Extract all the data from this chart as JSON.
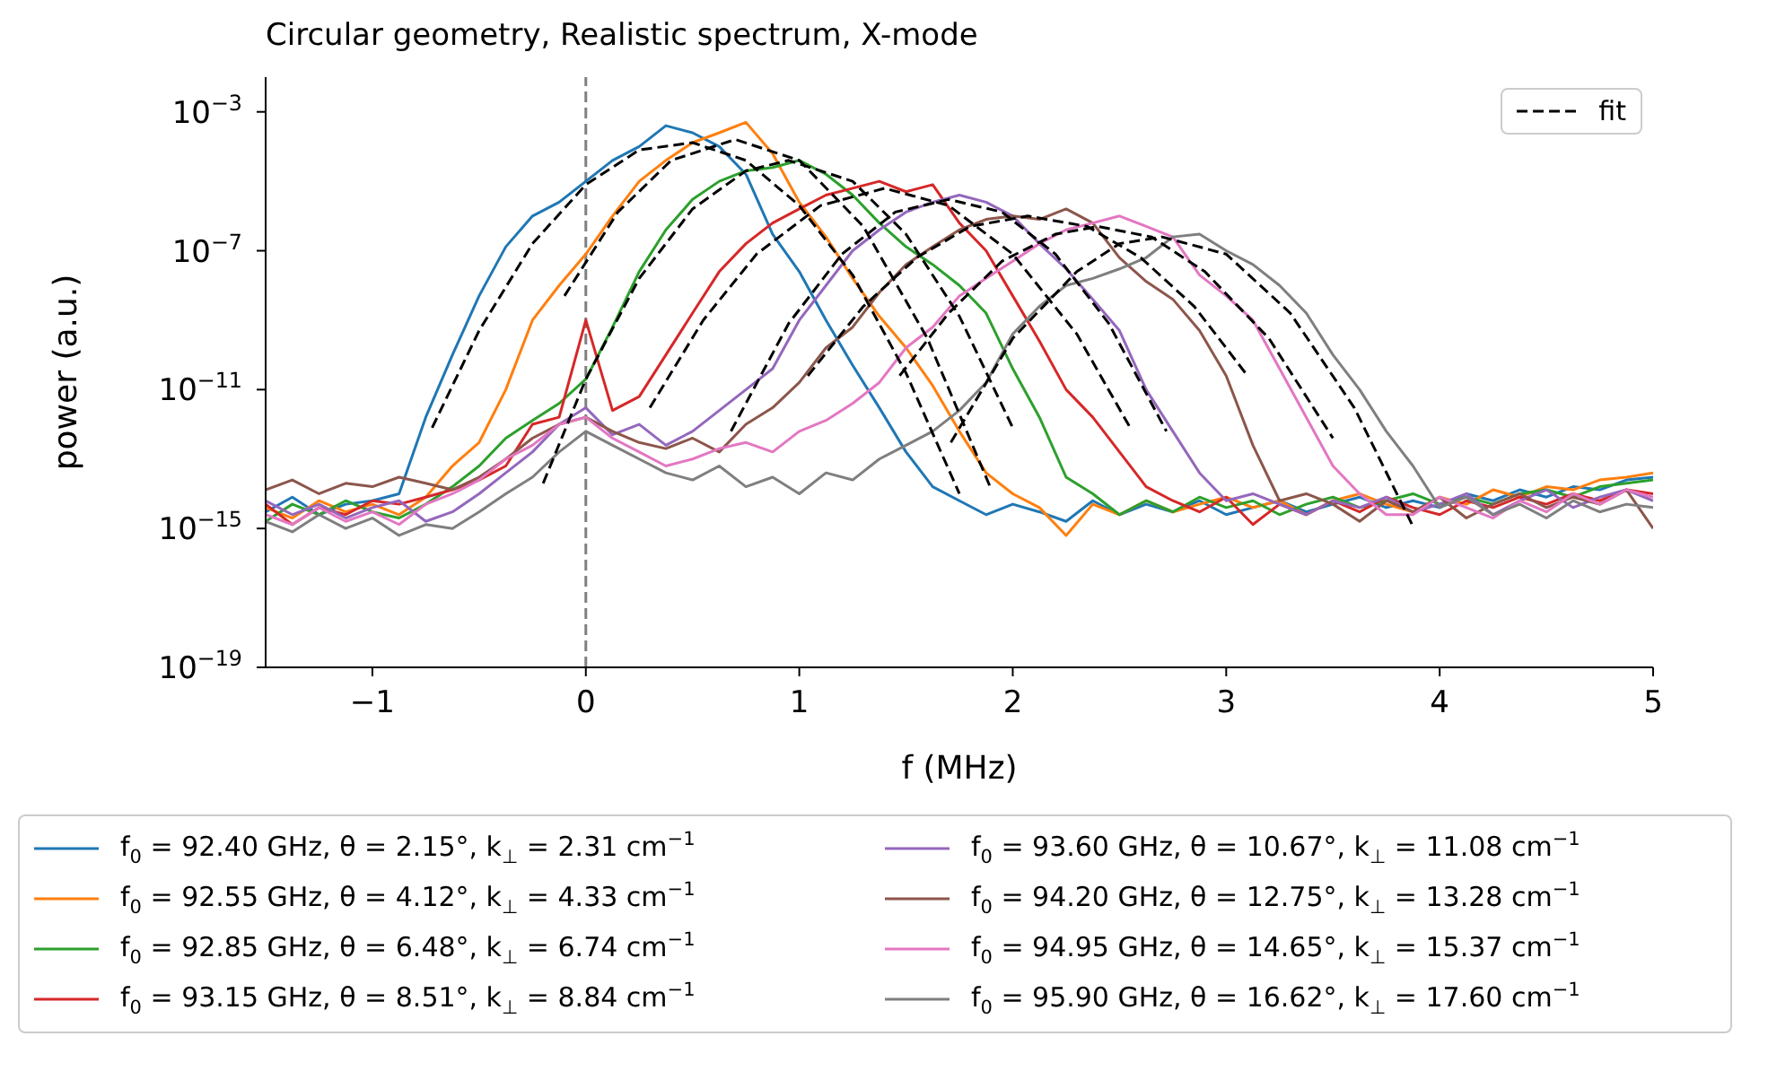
{
  "chart_data": {
    "type": "line",
    "title": "Circular geometry, Realistic spectrum, X-mode",
    "xlabel": "f (MHz)",
    "ylabel": "power (a.u.)",
    "log": "y",
    "legend": "bottom",
    "line_style": "solid",
    "xlim": [
      -1.5,
      5
    ],
    "xticks": [
      {
        "value": -1,
        "label": "−1"
      },
      0,
      1,
      2,
      3,
      4,
      5
    ],
    "ylim": [
      1e-19,
      0.01
    ],
    "yticks": [
      {
        "value": 1e-19,
        "label": "10$^{−19}$"
      },
      {
        "value": 1e-15,
        "label": "10$^{−15}$"
      },
      {
        "value": 1e-11,
        "label": "10$^{−11}$"
      },
      {
        "value": 1e-07,
        "label": "10$^{−7}$"
      },
      {
        "value": 0.001,
        "label": "10$^{−3}$"
      }
    ],
    "ref_lines": [
      {
        "axis": "x",
        "value": 0,
        "color": "#808080",
        "line_style": "dashed"
      }
    ],
    "x": [
      -1.5,
      -1.375,
      -1.25,
      -1.125,
      -1,
      -0.875,
      -0.75,
      -0.625,
      -0.5,
      -0.375,
      -0.25,
      -0.125,
      0,
      0.125,
      0.25,
      0.375,
      0.5,
      0.625,
      0.75,
      0.875,
      1,
      1.125,
      1.25,
      1.375,
      1.5,
      1.625,
      1.75,
      1.875,
      2,
      2.125,
      2.25,
      2.375,
      2.5,
      2.625,
      2.75,
      2.875,
      3,
      3.125,
      3.25,
      3.375,
      3.5,
      3.625,
      3.75,
      3.875,
      4,
      4.125,
      4.25,
      4.375,
      4.5,
      4.625,
      4.75,
      4.875,
      5
    ],
    "series": [
      {
        "name": "f$_{0}$ = 92.40 GHz, θ = 2.15°, k$_{⊥}$ = 2.31 cm$^{−1}$",
        "color": "#1f77b4",
        "values": [
          3e-15,
          8e-15,
          2.5e-15,
          5e-15,
          6.3e-15,
          1e-14,
          1.6e-12,
          1e-10,
          5e-09,
          1.3e-07,
          1e-06,
          2.5e-06,
          1e-05,
          4e-05,
          0.0001,
          0.0004,
          0.00025,
          0.0001,
          1.6e-05,
          3e-07,
          2.5e-08,
          1e-09,
          5e-11,
          3e-12,
          1.6e-13,
          1.6e-14,
          6.3e-15,
          2.5e-15,
          5e-15,
          3e-15,
          1.6e-15,
          6.3e-15,
          2.5e-15,
          5e-15,
          3e-15,
          6.3e-15,
          2.5e-15,
          4e-15,
          6.3e-15,
          3e-15,
          5e-15,
          8e-15,
          4e-15,
          6.3e-15,
          4e-15,
          1e-14,
          6.3e-15,
          1.3e-14,
          8e-15,
          1.6e-14,
          1.3e-14,
          2.5e-14,
          3e-14
        ]
      },
      {
        "name": "f$_{0}$ = 92.55 GHz, θ = 4.12°, k$_{⊥}$ = 4.33 cm$^{−1}$",
        "color": "#ff7f0e",
        "values": [
          4e-15,
          2e-15,
          6.3e-15,
          3e-15,
          5e-15,
          2.5e-15,
          8e-15,
          6.3e-14,
          3e-13,
          1e-11,
          1e-09,
          1e-08,
          8e-08,
          1e-06,
          1e-05,
          4e-05,
          0.00013,
          0.00025,
          0.0005,
          6.3e-05,
          2.5e-06,
          2.5e-07,
          1.6e-08,
          1.3e-09,
          1.6e-10,
          1.3e-11,
          6.3e-13,
          4e-14,
          1e-14,
          4e-15,
          6.3e-16,
          5e-15,
          2.5e-15,
          6.3e-15,
          3e-15,
          5e-15,
          8e-15,
          4e-15,
          6.3e-15,
          2.5e-15,
          6.3e-15,
          1e-14,
          5e-15,
          3e-15,
          8e-15,
          5e-15,
          1.3e-14,
          8e-15,
          1.6e-14,
          1.3e-14,
          2.5e-14,
          3e-14,
          4e-14
        ]
      },
      {
        "name": "f$_{0}$ = 92.85 GHz, θ = 6.48°, k$_{⊥}$ = 6.74 cm$^{−1}$",
        "color": "#2ca02c",
        "values": [
          1.6e-15,
          5e-15,
          2.5e-15,
          6.3e-15,
          3e-15,
          2e-15,
          5e-15,
          1.6e-14,
          6.3e-14,
          4e-13,
          1.3e-12,
          4e-12,
          2e-11,
          6.3e-10,
          2.5e-08,
          4e-07,
          3e-06,
          1e-05,
          2e-05,
          2.5e-05,
          4e-05,
          1.6e-05,
          4e-06,
          6.3e-07,
          1.3e-07,
          4e-08,
          1e-08,
          1.6e-09,
          4e-11,
          1.6e-12,
          3e-14,
          1e-14,
          2.5e-15,
          6.3e-15,
          3e-15,
          8e-15,
          4e-15,
          6.3e-15,
          2.5e-15,
          5e-15,
          8e-15,
          4e-15,
          6.3e-15,
          1e-14,
          5e-15,
          8e-15,
          5e-15,
          1e-14,
          1.3e-14,
          8e-15,
          1.6e-14,
          2e-14,
          2.5e-14
        ]
      },
      {
        "name": "f$_{0}$ = 93.15 GHz, θ = 8.51°, k$_{⊥}$ = 8.84 cm$^{−1}$",
        "color": "#d62728",
        "values": [
          5e-15,
          1.3e-15,
          4e-15,
          2.5e-15,
          6.3e-15,
          5e-15,
          8e-15,
          1.3e-14,
          2.5e-14,
          6.3e-14,
          1e-12,
          1.6e-12,
          1e-09,
          2.5e-12,
          6.3e-12,
          1e-10,
          1.6e-09,
          2.5e-08,
          1.6e-07,
          6.3e-07,
          1.6e-06,
          4e-06,
          6.3e-06,
          1e-05,
          5e-06,
          8e-06,
          6.3e-07,
          1e-07,
          5e-09,
          2.5e-10,
          1e-11,
          1.6e-12,
          1.6e-13,
          1.6e-14,
          6.3e-15,
          3e-15,
          8e-15,
          1.3e-15,
          5e-15,
          2.5e-15,
          6.3e-15,
          3e-15,
          8e-15,
          4e-15,
          2.5e-15,
          6.3e-15,
          4e-15,
          8e-15,
          5e-15,
          1e-14,
          6.3e-15,
          1.3e-14,
          1e-14
        ]
      },
      {
        "name": "f$_{0}$ = 93.60 GHz, θ = 10.67°, k$_{⊥}$ = 11.08 cm$^{−1}$",
        "color": "#9467bd",
        "values": [
          6.3e-15,
          2.5e-15,
          5e-15,
          2e-15,
          4e-15,
          6.3e-15,
          1.6e-15,
          3e-15,
          1e-14,
          4e-14,
          1.6e-13,
          1e-12,
          3e-12,
          5e-13,
          1e-12,
          2.5e-13,
          6.3e-13,
          2.5e-12,
          1e-11,
          4e-11,
          1e-09,
          1e-08,
          1e-07,
          4e-07,
          1.3e-06,
          2.5e-06,
          4e-06,
          2.5e-06,
          1e-06,
          1.6e-07,
          3e-08,
          4e-09,
          5e-10,
          1e-11,
          6.3e-13,
          4e-14,
          6.3e-15,
          1e-14,
          5e-15,
          2.5e-15,
          6.3e-15,
          4e-15,
          8e-15,
          3e-15,
          5e-15,
          1e-14,
          2.5e-15,
          6.3e-15,
          1.3e-14,
          4e-15,
          8e-15,
          1.3e-14,
          6.3e-15
        ]
      },
      {
        "name": "f$_{0}$ = 94.20 GHz, θ = 12.75°, k$_{⊥}$ = 13.28 cm$^{−1}$",
        "color": "#8c564b",
        "values": [
          1.3e-14,
          2.5e-14,
          1e-14,
          2e-14,
          1.6e-14,
          3e-14,
          2e-14,
          1.3e-14,
          3e-14,
          1e-13,
          4e-13,
          1e-12,
          1.6e-12,
          6.3e-13,
          3e-13,
          2e-13,
          4e-13,
          1.6e-13,
          1e-12,
          3e-12,
          1.6e-11,
          1.6e-10,
          6.3e-10,
          6.3e-09,
          4e-08,
          1.3e-07,
          4e-07,
          8e-07,
          1e-06,
          8e-07,
          1.6e-06,
          6.3e-07,
          6.3e-08,
          1.3e-08,
          4e-09,
          5e-10,
          2.5e-11,
          2.5e-13,
          6.3e-15,
          1e-14,
          5e-15,
          1.6e-15,
          6.3e-15,
          3e-15,
          8e-15,
          2e-15,
          5e-15,
          1e-14,
          4e-15,
          8e-15,
          5e-15,
          1.3e-14,
          1e-15
        ]
      },
      {
        "name": "f$_{0}$ = 94.95 GHz, θ = 14.65°, k$_{⊥}$ = 15.37 cm$^{−1}$",
        "color": "#e377c2",
        "values": [
          2.5e-15,
          1.3e-15,
          4e-15,
          1.6e-15,
          3e-15,
          1.3e-15,
          5e-15,
          1e-14,
          2.5e-14,
          1e-13,
          2.5e-13,
          1e-12,
          1.6e-12,
          4e-13,
          1.6e-13,
          6.3e-14,
          1e-13,
          2e-13,
          3e-13,
          1.6e-13,
          6.3e-13,
          1.3e-12,
          4e-12,
          1.6e-11,
          1.6e-10,
          6.3e-10,
          5e-09,
          1.6e-08,
          5e-08,
          1.6e-07,
          4e-07,
          6.3e-07,
          1e-06,
          5e-07,
          2.5e-07,
          2e-08,
          5e-09,
          1e-09,
          4e-11,
          1.6e-12,
          6.3e-14,
          1e-14,
          2.5e-15,
          2.5e-15,
          8e-15,
          4e-15,
          2e-15,
          6.3e-15,
          3e-15,
          1e-14,
          5e-15,
          1.3e-14,
          8e-15
        ]
      },
      {
        "name": "f$_{0}$ = 95.90 GHz, θ = 16.62°, k$_{⊥}$ = 17.60 cm$^{−1}$",
        "color": "#7f7f7f",
        "values": [
          1.6e-15,
          8e-16,
          2.5e-15,
          1e-15,
          2e-15,
          6.3e-16,
          1.3e-15,
          1e-15,
          3e-15,
          1e-14,
          3e-14,
          1.6e-13,
          6.3e-13,
          2.5e-13,
          1e-13,
          4e-14,
          2.5e-14,
          6.3e-14,
          1.6e-14,
          3e-14,
          1e-14,
          4e-14,
          2.5e-14,
          1e-13,
          2.5e-13,
          6.3e-13,
          2.5e-12,
          1.6e-11,
          4e-10,
          2.5e-09,
          1e-08,
          1.6e-08,
          3e-08,
          6.3e-08,
          2.5e-07,
          3e-07,
          1e-07,
          4e-08,
          1e-08,
          1.6e-09,
          1e-10,
          1e-11,
          6.3e-13,
          6.3e-14,
          4e-15,
          8e-15,
          2.5e-15,
          5e-15,
          2e-15,
          6.3e-15,
          3e-15,
          5e-15,
          4e-15
        ]
      },
      {
        "name": "fit",
        "color": "#000000",
        "line_style": "dashed",
        "x": [
          -0.72,
          -0.5,
          -0.25,
          0,
          0.25,
          0.5,
          0.75,
          1,
          1.25,
          1.5,
          1.75
        ],
        "values": [
          8e-13,
          5e-10,
          1.6e-07,
          8e-06,
          8e-05,
          0.00013,
          4e-05,
          2e-06,
          2e-08,
          3e-11,
          1e-14
        ]
      },
      {
        "color": "#000000",
        "line_style": "dashed",
        "x": [
          -0.1,
          0.15,
          0.4,
          0.7,
          1.0,
          1.3,
          1.6,
          1.9
        ],
        "values": [
          5e-09,
          1.3e-06,
          4e-05,
          0.00016,
          4e-05,
          5e-07,
          3e-10,
          1.3e-14
        ]
      },
      {
        "color": "#000000",
        "line_style": "dashed",
        "x": [
          -0.2,
          0,
          0.25,
          0.5,
          0.75,
          0.95,
          1.25,
          1.5,
          1.75,
          2.0
        ],
        "values": [
          2e-14,
          2e-11,
          1.6e-08,
          1.6e-06,
          2e-05,
          4e-05,
          1e-05,
          3e-07,
          1.3e-09,
          8e-13
        ]
      },
      {
        "color": "#000000",
        "line_style": "dashed",
        "x": [
          0.3,
          0.55,
          0.8,
          1.1,
          1.4,
          1.7,
          2.0,
          2.3,
          2.55
        ],
        "values": [
          3e-12,
          1e-09,
          8e-08,
          2e-06,
          6.3e-06,
          2e-06,
          8e-08,
          4e-10,
          8e-13
        ]
      },
      {
        "color": "#000000",
        "line_style": "dashed",
        "x": [
          0.68,
          0.95,
          1.2,
          1.45,
          1.7,
          1.95,
          2.2,
          2.45,
          2.72
        ],
        "values": [
          6.3e-13,
          8e-10,
          8e-08,
          1.3e-06,
          3e-06,
          1.3e-06,
          8e-08,
          8e-10,
          6.3e-13
        ]
      },
      {
        "color": "#000000",
        "line_style": "dashed",
        "x": [
          1.04,
          1.3,
          1.55,
          1.8,
          2.07,
          2.35,
          2.6,
          2.85,
          3.1
        ],
        "values": [
          2.5e-11,
          2.5e-09,
          6.3e-08,
          5e-07,
          1e-06,
          5e-07,
          6.3e-08,
          2.5e-09,
          2.5e-11
        ]
      },
      {
        "color": "#000000",
        "line_style": "dashed",
        "x": [
          1.47,
          1.7,
          1.95,
          2.2,
          2.4,
          2.65,
          2.9,
          3.2,
          3.5
        ],
        "values": [
          2.5e-11,
          1.6e-09,
          5e-08,
          3e-07,
          5e-07,
          2.5e-07,
          2.5e-08,
          3e-10,
          4e-13
        ]
      },
      {
        "color": "#000000",
        "line_style": "dashed",
        "x": [
          1.71,
          2.0,
          2.3,
          2.5,
          2.7,
          3.0,
          3.3,
          3.6,
          3.88
        ],
        "values": [
          3e-13,
          3e-10,
          2.5e-08,
          1.6e-07,
          2.5e-07,
          8e-08,
          1.6e-09,
          3e-12,
          1e-15
        ]
      }
    ]
  }
}
